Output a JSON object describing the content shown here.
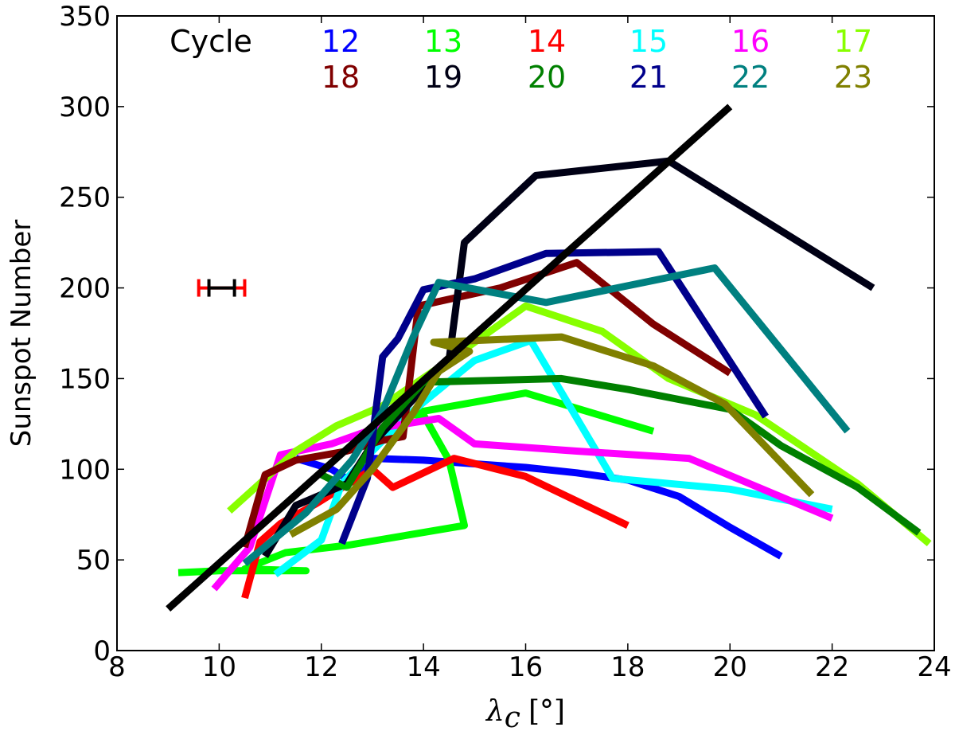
{
  "chart_data": {
    "type": "line",
    "xlabel": {
      "symbol": "λ",
      "subscript": "c",
      "unit": "[°]"
    },
    "ylabel": "Sunspot Number",
    "xlim": [
      8,
      24
    ],
    "ylim": [
      0,
      350
    ],
    "x_ticks": [
      8,
      10,
      12,
      14,
      16,
      18,
      20,
      22,
      24
    ],
    "y_ticks": [
      0,
      50,
      100,
      150,
      200,
      250,
      300,
      350
    ],
    "grid": false,
    "legend_title": "Cycle",
    "legend_placement": "top",
    "series": [
      {
        "name": "12",
        "color": "#0000ff",
        "x": [
          11.5,
          12.2,
          12.6,
          13.0,
          14.0,
          15.0,
          16.0,
          17.0,
          18.0,
          19.0,
          20.0,
          21.0
        ],
        "y": [
          106,
          100,
          93,
          106,
          105,
          103,
          101,
          98,
          94,
          85,
          68,
          52
        ]
      },
      {
        "name": "13",
        "color": "#00ff00",
        "x": [
          9.2,
          10.0,
          11.7,
          10.5,
          11.3,
          12.5,
          14.8,
          14.5,
          14.0,
          13.6,
          14.0,
          16.0,
          18.5
        ],
        "y": [
          43,
          44,
          44,
          45,
          54,
          58,
          69,
          105,
          130,
          130,
          132,
          142,
          121
        ]
      },
      {
        "name": "14",
        "color": "#ff0000",
        "x": [
          10.5,
          10.8,
          11.2,
          11.9,
          12.3,
          13.0,
          13.4,
          14.6,
          16.0,
          18.0
        ],
        "y": [
          29,
          60,
          70,
          81,
          88,
          100,
          90,
          106,
          96,
          69
        ]
      },
      {
        "name": "15",
        "color": "#00ffff",
        "x": [
          11.1,
          12.0,
          12.4,
          13.0,
          13.7,
          15.0,
          16.1,
          17.7,
          20.0,
          22.0
        ],
        "y": [
          42,
          61,
          92,
          110,
          130,
          160,
          171,
          95,
          89,
          78
        ]
      },
      {
        "name": "16",
        "color": "#ff00ff",
        "x": [
          9.9,
          10.6,
          11.2,
          12.2,
          13.0,
          14.3,
          15.0,
          17.0,
          19.2,
          22.0
        ],
        "y": [
          34,
          57,
          108,
          114,
          122,
          128,
          114,
          110,
          106,
          73
        ]
      },
      {
        "name": "17",
        "color": "#88ff00",
        "x": [
          10.2,
          11.5,
          12.3,
          13.2,
          14.5,
          16.0,
          17.5,
          18.8,
          20.5,
          22.5,
          23.9
        ],
        "y": [
          77,
          110,
          124,
          135,
          160,
          190,
          176,
          150,
          130,
          92,
          59
        ]
      },
      {
        "name": "18",
        "color": "#800000",
        "x": [
          10.5,
          10.9,
          11.5,
          12.5,
          13.2,
          13.6,
          13.9,
          15.5,
          17.0,
          18.5,
          20.0
        ],
        "y": [
          57,
          97,
          105,
          110,
          116,
          118,
          190,
          200,
          214,
          180,
          153
        ]
      },
      {
        "name": "19",
        "color": "#000015",
        "x": [
          10.9,
          11.5,
          12.5,
          13.0,
          14.5,
          14.8,
          16.2,
          18.8,
          22.8
        ],
        "y": [
          52,
          80,
          92,
          114,
          160,
          225,
          262,
          270,
          200
        ]
      },
      {
        "name": "20",
        "color": "#008000",
        "x": [
          12.0,
          12.5,
          13.2,
          14.0,
          16.7,
          18.0,
          20.0,
          21.0,
          22.5,
          23.7
        ],
        "y": [
          97,
          90,
          123,
          148,
          150,
          144,
          133,
          113,
          90,
          65
        ]
      },
      {
        "name": "21",
        "color": "#00008b",
        "x": [
          12.4,
          12.9,
          13.2,
          13.5,
          14.0,
          15.0,
          16.4,
          18.6,
          20.7
        ],
        "y": [
          59,
          95,
          162,
          172,
          199,
          205,
          219,
          220,
          129
        ]
      },
      {
        "name": "22",
        "color": "#008080",
        "x": [
          10.5,
          11.7,
          12.6,
          13.2,
          13.8,
          14.3,
          16.4,
          19.7,
          22.3
        ],
        "y": [
          48,
          76,
          105,
          132,
          173,
          203,
          192,
          211,
          121
        ]
      },
      {
        "name": "23",
        "color": "#808000",
        "x": [
          11.4,
          12.3,
          13.0,
          13.8,
          14.3,
          14.9,
          14.2,
          16.7,
          18.5,
          19.9,
          21.6
        ],
        "y": [
          64,
          78,
          100,
          131,
          154,
          165,
          170,
          173,
          157,
          136,
          86
        ]
      }
    ],
    "fit_line": {
      "color": "#000000",
      "x": [
        9.0,
        20.0
      ],
      "y": [
        23,
        300
      ]
    },
    "error_bars": [
      {
        "color": "#ff0000",
        "x_center": 10.0,
        "x_low": 9.6,
        "x_high": 10.5,
        "y": 200
      },
      {
        "color": "#000000",
        "x_center": 10.0,
        "x_low": 9.8,
        "x_high": 10.3,
        "y": 200
      }
    ]
  }
}
